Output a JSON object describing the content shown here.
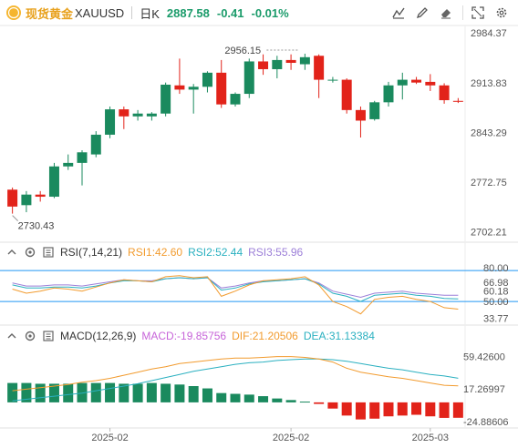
{
  "header": {
    "brand": "现货黄金",
    "symbol": "XAUUSD",
    "interval": "日K",
    "price": "2887.58",
    "change": "-0.41",
    "change_pct": "-0.01%"
  },
  "colors": {
    "up": "#1a8a5e",
    "down": "#e2231a",
    "rsi1": "#f29b2e",
    "rsi2": "#2ab0c0",
    "rsi3": "#9c7fd8",
    "macd_dif": "#f29b2e",
    "macd_dea": "#2ab0c0",
    "rsi_level": "#2196f3"
  },
  "toolbar_icons": [
    "chart-settings-icon",
    "draw-icon",
    "eraser-icon",
    "fullscreen-icon",
    "settings-icon"
  ],
  "rsi": {
    "title": "RSI(7,14,21)",
    "rsi1": "RSI1:42.60",
    "rsi2": "RSI2:52.44",
    "rsi3": "RSI3:55.96"
  },
  "macd": {
    "title": "MACD(12,26,9)",
    "macd": "MACD:-19.85756",
    "dif": "DIF:21.20506",
    "dea": "DEA:31.13384"
  },
  "chart_data": {
    "type": "candlestick",
    "price_axis": {
      "ticks": [
        "2984.37",
        "2913.83",
        "2843.29",
        "2772.75",
        "2702.21"
      ],
      "range": [
        2690,
        2995
      ]
    },
    "annotations": {
      "high": "2956.15",
      "low": "2730.43"
    },
    "candles": [
      {
        "o": 2762,
        "h": 2765,
        "l": 2728,
        "c": 2738
      },
      {
        "o": 2740,
        "h": 2760,
        "l": 2730,
        "c": 2755
      },
      {
        "o": 2755,
        "h": 2760,
        "l": 2745,
        "c": 2752
      },
      {
        "o": 2752,
        "h": 2800,
        "l": 2750,
        "c": 2795
      },
      {
        "o": 2795,
        "h": 2812,
        "l": 2790,
        "c": 2800
      },
      {
        "o": 2800,
        "h": 2818,
        "l": 2768,
        "c": 2815
      },
      {
        "o": 2812,
        "h": 2845,
        "l": 2808,
        "c": 2840
      },
      {
        "o": 2840,
        "h": 2880,
        "l": 2835,
        "c": 2876
      },
      {
        "o": 2876,
        "h": 2880,
        "l": 2848,
        "c": 2866
      },
      {
        "o": 2866,
        "h": 2875,
        "l": 2860,
        "c": 2870
      },
      {
        "o": 2866,
        "h": 2872,
        "l": 2860,
        "c": 2870
      },
      {
        "o": 2870,
        "h": 2914,
        "l": 2866,
        "c": 2911
      },
      {
        "o": 2910,
        "h": 2948,
        "l": 2898,
        "c": 2904
      },
      {
        "o": 2904,
        "h": 2912,
        "l": 2870,
        "c": 2908
      },
      {
        "o": 2908,
        "h": 2930,
        "l": 2900,
        "c": 2928
      },
      {
        "o": 2928,
        "h": 2946,
        "l": 2878,
        "c": 2883
      },
      {
        "o": 2883,
        "h": 2900,
        "l": 2880,
        "c": 2898
      },
      {
        "o": 2898,
        "h": 2948,
        "l": 2892,
        "c": 2944
      },
      {
        "o": 2944,
        "h": 2954,
        "l": 2925,
        "c": 2933
      },
      {
        "o": 2933,
        "h": 2952,
        "l": 2920,
        "c": 2946
      },
      {
        "o": 2946,
        "h": 2954,
        "l": 2932,
        "c": 2942
      },
      {
        "o": 2940,
        "h": 2955,
        "l": 2932,
        "c": 2950
      },
      {
        "o": 2952,
        "h": 2954,
        "l": 2892,
        "c": 2918
      },
      {
        "o": 2918,
        "h": 2922,
        "l": 2914,
        "c": 2918
      },
      {
        "o": 2918,
        "h": 2920,
        "l": 2870,
        "c": 2875
      },
      {
        "o": 2875,
        "h": 2880,
        "l": 2836,
        "c": 2860
      },
      {
        "o": 2862,
        "h": 2888,
        "l": 2860,
        "c": 2886
      },
      {
        "o": 2886,
        "h": 2915,
        "l": 2880,
        "c": 2910
      },
      {
        "o": 2910,
        "h": 2928,
        "l": 2890,
        "c": 2918
      },
      {
        "o": 2918,
        "h": 2922,
        "l": 2912,
        "c": 2914
      },
      {
        "o": 2915,
        "h": 2926,
        "l": 2902,
        "c": 2910
      },
      {
        "o": 2910,
        "h": 2913,
        "l": 2884,
        "c": 2889
      },
      {
        "o": 2888,
        "h": 2892,
        "l": 2885,
        "c": 2887
      }
    ],
    "rsi": {
      "ticks": [
        "80.00",
        "66.98",
        "60.18",
        "50.00",
        "33.77"
      ],
      "range": [
        28,
        88
      ],
      "levels": [
        80,
        50
      ],
      "rsi1": [
        62,
        58,
        60,
        63,
        62,
        60,
        64,
        68,
        71,
        70,
        69,
        74,
        75,
        73,
        74,
        55,
        60,
        66,
        70,
        71,
        72,
        74,
        66,
        50,
        45,
        38,
        52,
        54,
        55,
        52,
        50,
        44,
        42.6
      ],
      "rsi2": [
        66,
        63,
        63,
        64,
        64,
        63,
        65,
        68,
        70,
        70,
        69,
        72,
        73,
        72,
        73,
        61,
        63,
        67,
        69,
        70,
        71,
        72,
        67,
        58,
        55,
        50,
        56,
        57,
        58,
        56,
        55,
        53,
        52.44
      ],
      "rsi3": [
        68,
        65,
        65,
        66,
        66,
        65,
        67,
        69,
        71,
        70,
        70,
        72,
        73,
        72,
        73,
        63,
        65,
        68,
        70,
        70,
        71,
        72,
        68,
        60,
        57,
        54,
        58,
        59,
        60,
        58,
        57,
        56,
        55.96
      ]
    },
    "macd": {
      "ticks": [
        "59.42600",
        "17.26997",
        "-24.88606"
      ],
      "range": [
        -33,
        75
      ],
      "hist": [
        25,
        25,
        24,
        24,
        24,
        25,
        25,
        25,
        24,
        24,
        25,
        24,
        23,
        21,
        18,
        12,
        11,
        10,
        8,
        5,
        3,
        1,
        -2,
        -8,
        -17,
        -22,
        -21,
        -18,
        -17,
        -16,
        -18,
        -20,
        -19.86
      ],
      "dif": [
        15,
        17,
        19,
        21,
        23,
        26,
        28,
        31,
        35,
        39,
        43,
        46,
        50,
        52,
        54,
        56,
        57,
        57,
        58,
        59,
        59,
        58,
        56,
        52,
        44,
        39,
        36,
        33,
        31,
        28,
        25,
        22,
        21.2
      ],
      "dea": [
        2,
        4,
        6,
        8,
        10,
        12,
        15,
        18,
        21,
        24,
        28,
        32,
        36,
        40,
        43,
        46,
        49,
        51,
        52,
        54,
        55,
        56,
        56,
        55,
        53,
        50,
        47,
        44,
        42,
        39,
        36,
        34,
        31.13
      ]
    },
    "x_ticks": [
      {
        "label": "2025-02",
        "index": 7
      },
      {
        "label": "2025-02",
        "index": 20
      },
      {
        "label": "2025-03",
        "index": 30
      }
    ]
  }
}
